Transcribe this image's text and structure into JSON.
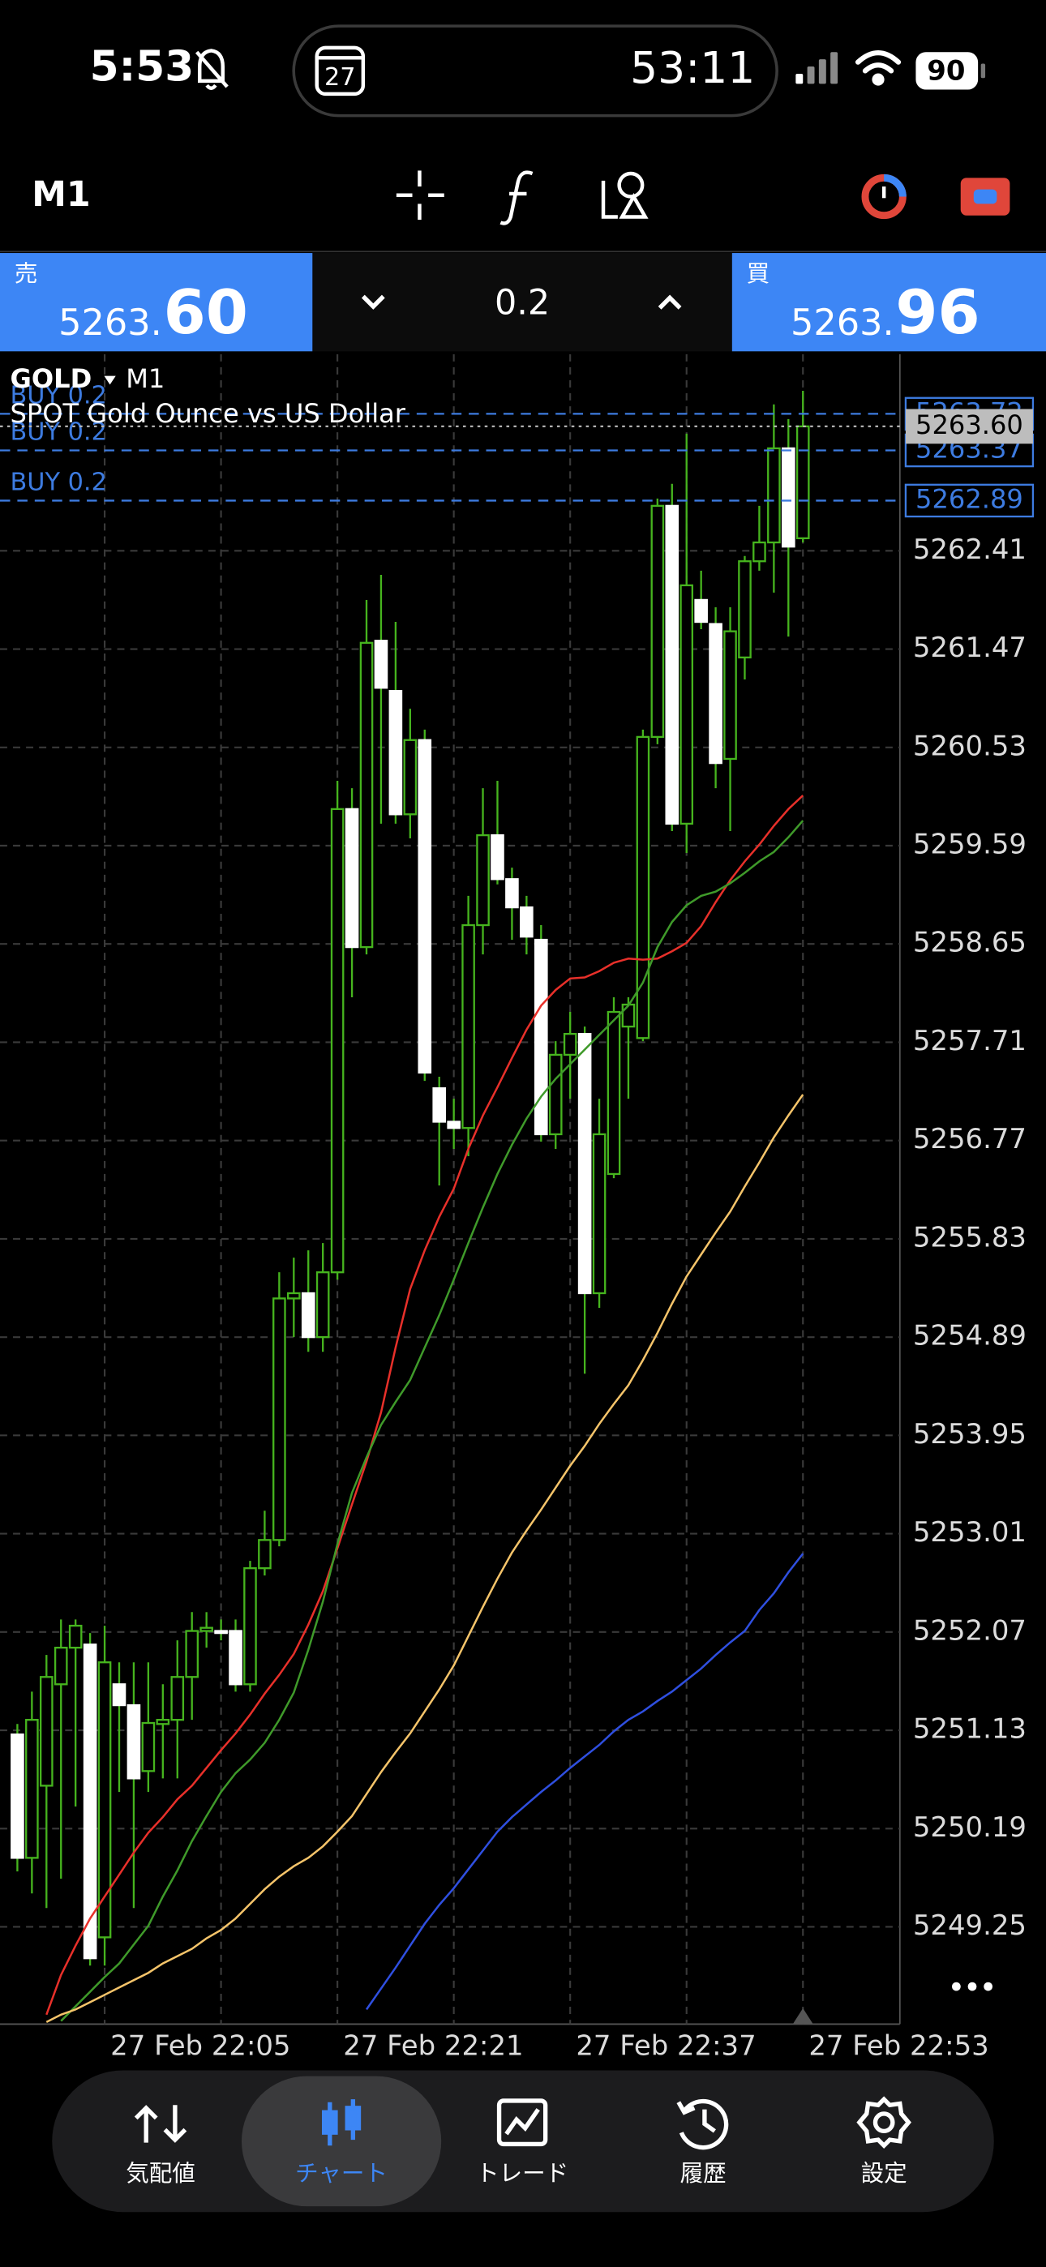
{
  "status_bar": {
    "time": "5:53",
    "calendar_day": "27",
    "timer": "53:11",
    "battery": "90"
  },
  "toolbar": {
    "timeframe": "M1"
  },
  "quote": {
    "sell": {
      "label": "売",
      "price_main": "5263.",
      "price_big": "60"
    },
    "lot": "0.2",
    "buy": {
      "label": "買",
      "price_main": "5263.",
      "price_big": "96"
    }
  },
  "chart_data": {
    "type": "candlestick",
    "symbol": "GOLD",
    "timeframe": "M1",
    "description": "SPOT Gold Ounce vs US Dollar",
    "categories": [
      null,
      null,
      null,
      null,
      null,
      null,
      "27 Feb 22:05",
      null,
      null,
      null,
      null,
      null,
      null,
      null,
      null,
      null,
      null,
      null,
      null,
      null,
      null,
      null,
      "27 Feb 22:21",
      null,
      null,
      null,
      null,
      null,
      null,
      null,
      null,
      null,
      null,
      null,
      null,
      null,
      null,
      null,
      "27 Feb 22:37",
      null,
      null,
      null,
      null,
      null,
      null,
      null,
      null,
      null,
      null,
      null,
      null,
      null,
      null,
      null,
      "27 Feb 22:53"
    ],
    "open": [
      5251.09,
      5249.91,
      5250.6,
      5251.57,
      5251.92,
      5251.95,
      5249.15,
      5251.57,
      5251.37,
      5250.74,
      5251.19,
      5251.23,
      5251.64,
      5252.08,
      5252.08,
      5252.08,
      5251.57,
      5252.68,
      5252.95,
      5255.26,
      5255.31,
      5254.89,
      5255.51,
      5259.94,
      5258.62,
      5261.55,
      5261.07,
      5259.89,
      5260.6,
      5257.27,
      5256.95,
      5256.89,
      5258.83,
      5259.69,
      5259.27,
      5259,
      5258.69,
      5256.83,
      5257.59,
      5257.79,
      5255.31,
      5256.45,
      5257.86,
      5257.75,
      5260.63,
      5262.84,
      5259.8,
      5261.94,
      5261.71,
      5260.42,
      5261.39,
      5262.31,
      5262.49,
      5263.39,
      5262.53
    ],
    "high": [
      5251.19,
      5251.5,
      5251.85,
      5252.19,
      5252.19,
      5252.06,
      5252.13,
      5251.78,
      5251.78,
      5251.78,
      5251.57,
      5251.99,
      5252.26,
      5252.26,
      5252.19,
      5252.19,
      5252.75,
      5253.23,
      5255.51,
      5255.65,
      5255.72,
      5255.79,
      5260.21,
      5260.14,
      5261.94,
      5262.18,
      5261.73,
      5260.9,
      5260.7,
      5257.38,
      5257.17,
      5259.11,
      5260.14,
      5260.21,
      5259.38,
      5259.11,
      5258.83,
      5257.72,
      5258,
      5257.86,
      5257.17,
      5258.14,
      5258.14,
      5260.7,
      5262.91,
      5263.05,
      5263.53,
      5262.22,
      5261.87,
      5261.87,
      5262.36,
      5262.84,
      5263.81,
      5263.67,
      5263.94
    ],
    "low": [
      5249.78,
      5249.57,
      5249.43,
      5249.71,
      5250.4,
      5248.88,
      5248.88,
      5250.54,
      5249.43,
      5250.54,
      5250.67,
      5250.67,
      5251.23,
      5251.92,
      5251.99,
      5251.5,
      5251.5,
      5252.61,
      5252.89,
      5254.89,
      5254.75,
      5254.75,
      5255.44,
      5258.14,
      5258.55,
      5259.8,
      5259.8,
      5259.66,
      5257.34,
      5256.34,
      5256.69,
      5256.62,
      5258.55,
      5259.22,
      5258.69,
      5258.55,
      5256.76,
      5256.69,
      5257.17,
      5254.54,
      5255.17,
      5256.41,
      5257.17,
      5257.72,
      5260.56,
      5259.73,
      5259.52,
      5261.66,
      5260.14,
      5259.73,
      5261.18,
      5262.22,
      5262.01,
      5261.59,
      5262.49
    ],
    "close": [
      5249.91,
      5251.23,
      5251.64,
      5251.92,
      5252.13,
      5248.95,
      5251.78,
      5251.37,
      5250.67,
      5251.2,
      5251.23,
      5251.64,
      5252.08,
      5252.11,
      5252.06,
      5251.57,
      5252.68,
      5252.95,
      5255.26,
      5255.31,
      5254.89,
      5255.51,
      5259.94,
      5258.62,
      5261.53,
      5261.1,
      5259.89,
      5260.6,
      5257.42,
      5256.95,
      5256.89,
      5258.83,
      5259.69,
      5259.27,
      5259,
      5258.72,
      5256.83,
      5257.59,
      5257.79,
      5255.31,
      5256.83,
      5258,
      5258.07,
      5260.63,
      5262.84,
      5259.8,
      5262.08,
      5261.73,
      5260.38,
      5261.64,
      5262.31,
      5262.49,
      5263.39,
      5262.45,
      5263.6
    ],
    "up_color": "#000000",
    "down_color": "#ffffff",
    "wick_color": "#46b41e",
    "series": [
      {
        "color": "#e8302a",
        "values": [
          null,
          null,
          5248.41,
          5248.79,
          5249.07,
          5249.33,
          5249.54,
          5249.75,
          5249.96,
          5250.15,
          5250.3,
          5250.47,
          5250.6,
          5250.77,
          5250.94,
          5251.1,
          5251.28,
          5251.48,
          5251.66,
          5251.86,
          5252.14,
          5252.46,
          5252.87,
          5253.29,
          5253.7,
          5254.17,
          5254.79,
          5255.35,
          5255.72,
          5256.04,
          5256.31,
          5256.69,
          5257.01,
          5257.28,
          5257.56,
          5257.83,
          5258.06,
          5258.21,
          5258.32,
          5258.33,
          5258.39,
          5258.47,
          5258.51,
          5258.5,
          5258.51,
          5258.58,
          5258.66,
          5258.82,
          5259.05,
          5259.26,
          5259.44,
          5259.6,
          5259.78,
          5259.94,
          5260.07
        ]
      },
      {
        "color": "#3f9a2a",
        "values": [
          null,
          null,
          null,
          5248.35,
          5248.49,
          5248.63,
          5248.77,
          5248.9,
          5249.08,
          5249.26,
          5249.54,
          5249.79,
          5250.07,
          5250.31,
          5250.54,
          5250.72,
          5250.85,
          5251.01,
          5251.23,
          5251.49,
          5251.9,
          5252.36,
          5252.91,
          5253.4,
          5253.74,
          5254.05,
          5254.27,
          5254.48,
          5254.79,
          5255.1,
          5255.44,
          5255.79,
          5256.13,
          5256.45,
          5256.73,
          5256.98,
          5257.19,
          5257.36,
          5257.5,
          5257.64,
          5257.78,
          5257.92,
          5258.06,
          5258.28,
          5258.62,
          5258.86,
          5259.02,
          5259.11,
          5259.15,
          5259.23,
          5259.33,
          5259.44,
          5259.53,
          5259.67,
          5259.83
        ]
      },
      {
        "color": "#f5c46a",
        "values": [
          null,
          null,
          5248.34,
          5248.41,
          5248.46,
          5248.53,
          5248.6,
          5248.67,
          5248.74,
          5248.81,
          5248.9,
          5248.97,
          5249.04,
          5249.14,
          5249.22,
          5249.33,
          5249.47,
          5249.61,
          5249.73,
          5249.83,
          5249.91,
          5250.02,
          5250.16,
          5250.31,
          5250.52,
          5250.73,
          5250.92,
          5251.1,
          5251.31,
          5251.52,
          5251.75,
          5252.03,
          5252.31,
          5252.58,
          5252.83,
          5253.04,
          5253.24,
          5253.45,
          5253.66,
          5253.85,
          5254.06,
          5254.25,
          5254.43,
          5254.67,
          5254.93,
          5255.21,
          5255.47,
          5255.68,
          5255.89,
          5256.09,
          5256.33,
          5256.56,
          5256.8,
          5257.01,
          5257.21
        ]
      },
      {
        "color": "#2f4fe0",
        "values": [
          null,
          null,
          null,
          null,
          null,
          null,
          null,
          null,
          null,
          null,
          null,
          null,
          null,
          null,
          null,
          null,
          null,
          null,
          null,
          null,
          null,
          null,
          null,
          null,
          5248.46,
          5248.66,
          5248.86,
          5249.07,
          5249.28,
          5249.46,
          5249.62,
          5249.8,
          5249.98,
          5250.16,
          5250.3,
          5250.42,
          5250.54,
          5250.65,
          5250.77,
          5250.88,
          5250.99,
          5251.12,
          5251.23,
          5251.31,
          5251.41,
          5251.5,
          5251.61,
          5251.72,
          5251.85,
          5251.97,
          5252.08,
          5252.28,
          5252.44,
          5252.64,
          5252.82
        ]
      }
    ],
    "ylim": [
      5248.32,
      5264.29
    ],
    "yticks": [
      5249.25,
      5250.19,
      5251.13,
      5252.07,
      5253.01,
      5253.95,
      5254.89,
      5255.83,
      5256.77,
      5257.71,
      5258.65,
      5259.59,
      5260.53,
      5261.47,
      5262.41
    ],
    "grid": true,
    "bid": {
      "value": 5263.6,
      "label": "5263.60"
    },
    "orders": [
      {
        "label": "BUY 0.2",
        "price": 5263.72
      },
      {
        "label": "BUY 0.2",
        "price": 5263.37
      },
      {
        "label": "BUY 0.2",
        "price": 5262.89
      }
    ]
  },
  "nav": {
    "items": [
      "気配値",
      "チャート",
      "トレード",
      "履歴",
      "設定"
    ],
    "active": 1
  }
}
